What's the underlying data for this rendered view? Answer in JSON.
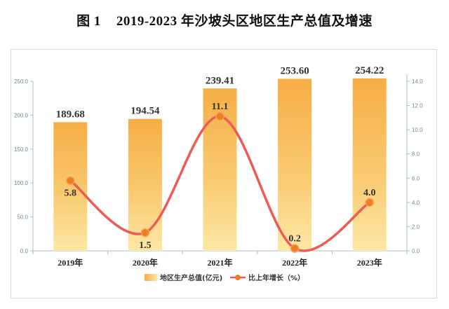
{
  "figure": {
    "number": "图 1",
    "title": "2019-2023 年沙坡头区地区生产总值及增速"
  },
  "chart_data": {
    "type": "bar",
    "categories": [
      "2019年",
      "2020年",
      "2021年",
      "2022年",
      "2023年"
    ],
    "series": [
      {
        "name": "地区生产总值(亿元)",
        "type": "bar",
        "axis": "left",
        "values": [
          189.68,
          194.54,
          239.41,
          253.6,
          254.22
        ],
        "labels": [
          "189.68",
          "194.54",
          "239.41",
          "253.60",
          "254.22"
        ]
      },
      {
        "name": "比上年增长（%）",
        "type": "line",
        "axis": "right",
        "values": [
          5.8,
          1.5,
          11.1,
          0.2,
          4.0
        ],
        "labels": [
          "5.8",
          "1.5",
          "11.1",
          "0.2",
          "4.0"
        ]
      }
    ],
    "y_left": {
      "min": 0,
      "max": 250,
      "ticks": [
        "0.0",
        "50.0",
        "100.0",
        "150.0",
        "200.0",
        "250.0"
      ]
    },
    "y_right": {
      "min": 0,
      "max": 14,
      "ticks": [
        "0.0",
        "2.0",
        "4.0",
        "6.0",
        "8.0",
        "10.0",
        "12.0",
        "14.0"
      ]
    },
    "legend_position": "bottom",
    "grid": false,
    "colors": {
      "bar_top": "#f6ae46",
      "bar_bottom": "#fde7a6",
      "line": "#ee5b55",
      "marker": "#ef7d22",
      "axis": "#a9bfc8",
      "tick_text": "#6f8a96"
    }
  }
}
